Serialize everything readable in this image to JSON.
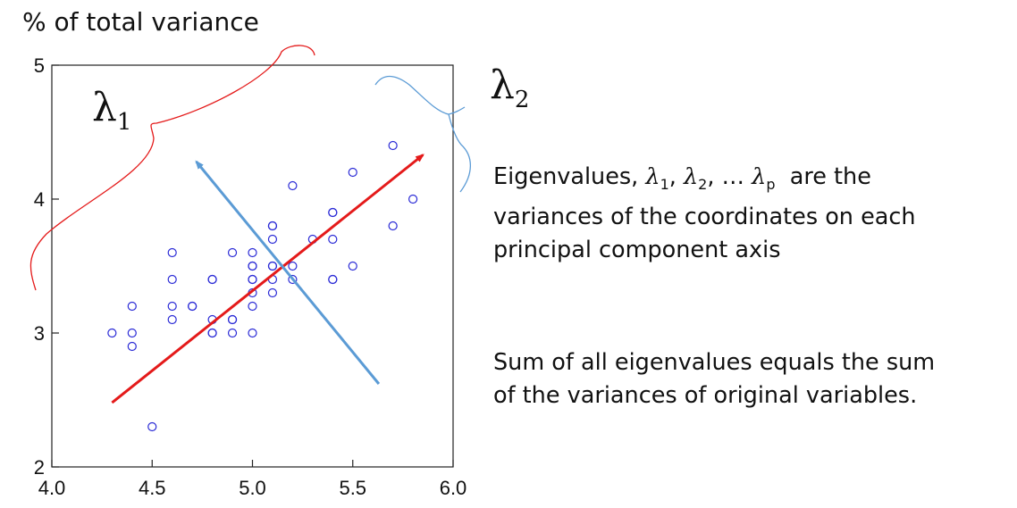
{
  "title": "% of total variance",
  "lambda1": {
    "symbol": "λ",
    "sub": "1"
  },
  "lambda2": {
    "symbol": "λ",
    "sub": "2"
  },
  "text1": {
    "prefix": "Eigenvalues,",
    "l1": "λ",
    "s1": "1",
    "l2": "λ",
    "s2": "2",
    "dots": "…",
    "lp": "λ",
    "sp": "p",
    "suffix": "are the",
    "line2": "variances of the coordinates on each",
    "line3": "principal component axis"
  },
  "text2": {
    "line1": "Sum of all eigenvalues equals the sum",
    "line2": "of the variances of original variables."
  },
  "colors": {
    "points": "#2b2bd6",
    "red_arrow": "#e41a1a",
    "blue_arrow": "#5b9bd5",
    "red_brace": "#e41a1a",
    "blue_brace": "#5b9bd5"
  },
  "chart_data": {
    "type": "scatter",
    "xlim": [
      4.0,
      6.0
    ],
    "ylim": [
      2,
      5
    ],
    "x_ticks": [
      "4.0",
      "4.5",
      "5.0",
      "5.5",
      "6.0"
    ],
    "y_ticks": [
      "2",
      "3",
      "4",
      "5"
    ],
    "points": [
      [
        4.3,
        3.0
      ],
      [
        4.4,
        3.2
      ],
      [
        4.4,
        3.0
      ],
      [
        4.4,
        2.9
      ],
      [
        4.5,
        2.3
      ],
      [
        4.6,
        3.6
      ],
      [
        4.6,
        3.4
      ],
      [
        4.6,
        3.2
      ],
      [
        4.6,
        3.1
      ],
      [
        4.7,
        3.2
      ],
      [
        4.7,
        3.2
      ],
      [
        4.8,
        3.4
      ],
      [
        4.8,
        3.4
      ],
      [
        4.8,
        3.1
      ],
      [
        4.8,
        3.0
      ],
      [
        4.8,
        3.0
      ],
      [
        4.9,
        3.6
      ],
      [
        4.9,
        3.1
      ],
      [
        4.9,
        3.1
      ],
      [
        4.9,
        3.0
      ],
      [
        5.0,
        3.6
      ],
      [
        5.0,
        3.5
      ],
      [
        5.0,
        3.5
      ],
      [
        5.0,
        3.4
      ],
      [
        5.0,
        3.4
      ],
      [
        5.0,
        3.3
      ],
      [
        5.0,
        3.2
      ],
      [
        5.0,
        3.0
      ],
      [
        5.1,
        3.8
      ],
      [
        5.1,
        3.8
      ],
      [
        5.1,
        3.7
      ],
      [
        5.1,
        3.5
      ],
      [
        5.1,
        3.5
      ],
      [
        5.1,
        3.4
      ],
      [
        5.1,
        3.3
      ],
      [
        5.2,
        4.1
      ],
      [
        5.2,
        3.5
      ],
      [
        5.2,
        3.4
      ],
      [
        5.3,
        3.7
      ],
      [
        5.4,
        3.9
      ],
      [
        5.4,
        3.9
      ],
      [
        5.4,
        3.7
      ],
      [
        5.4,
        3.4
      ],
      [
        5.4,
        3.4
      ],
      [
        5.5,
        4.2
      ],
      [
        5.5,
        3.5
      ],
      [
        5.7,
        4.4
      ],
      [
        5.7,
        3.8
      ],
      [
        5.8,
        4.0
      ]
    ],
    "pc1_arrow": {
      "from": [
        4.3,
        2.48
      ],
      "to": [
        5.85,
        4.33
      ]
    },
    "pc2_arrow": {
      "from": [
        5.63,
        2.62
      ],
      "to": [
        4.72,
        4.28
      ]
    }
  }
}
